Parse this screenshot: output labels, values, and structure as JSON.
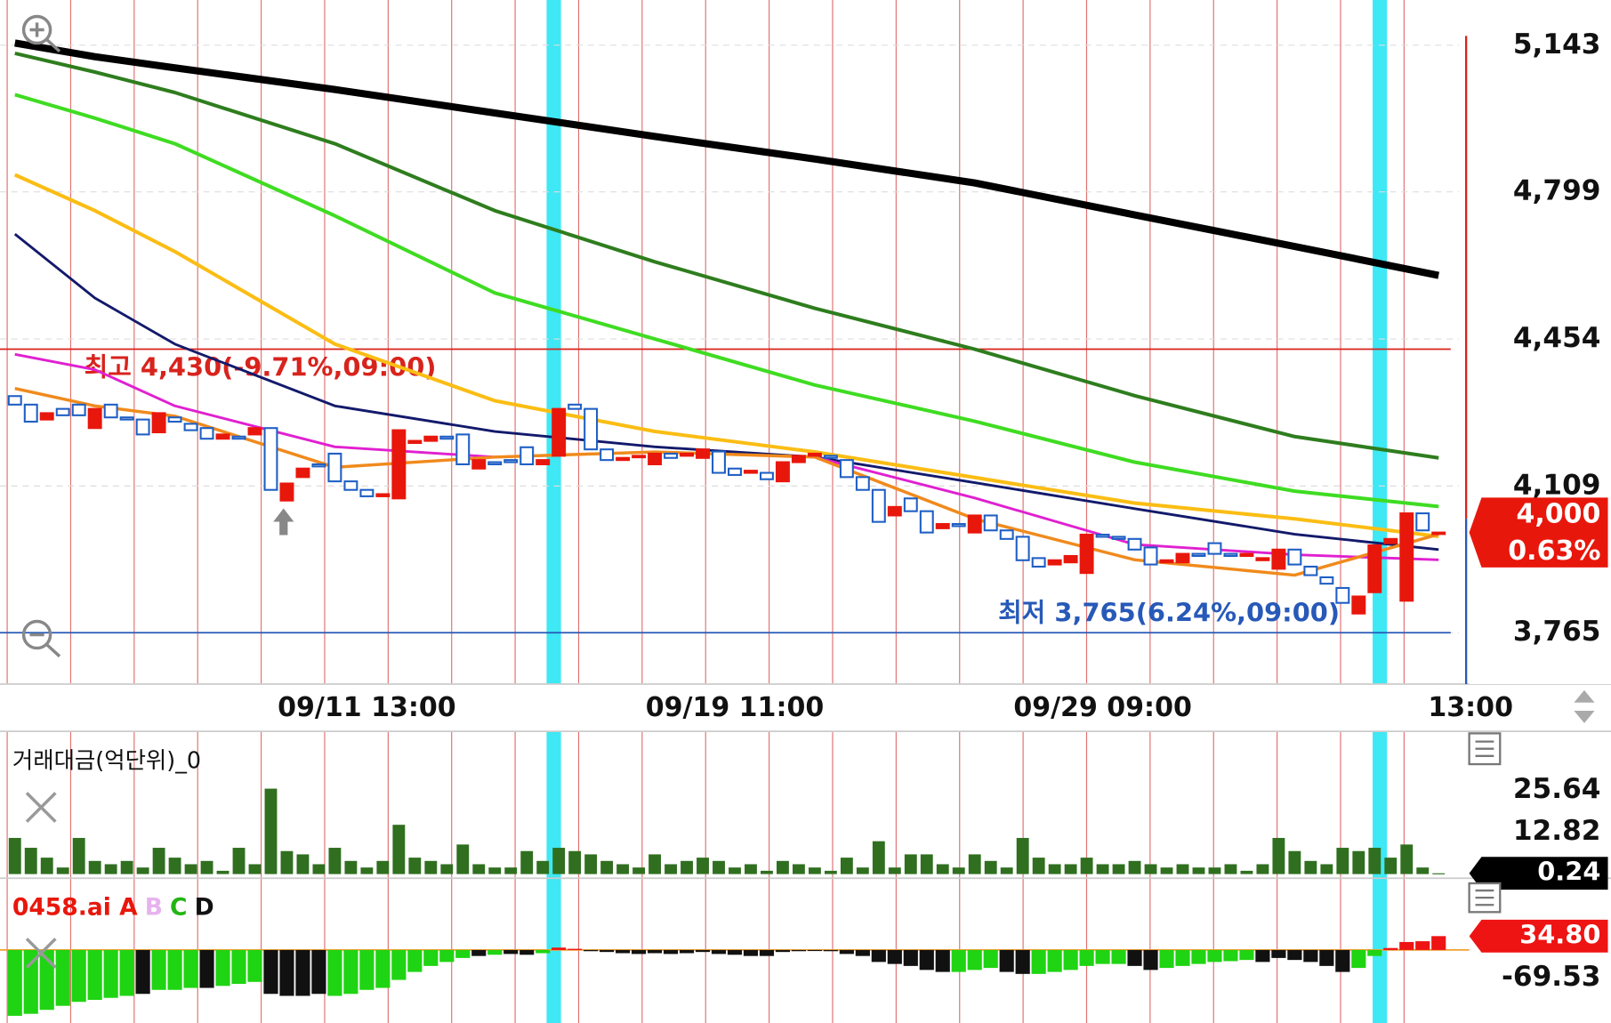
{
  "chart_data": [
    {
      "type": "candlestick",
      "categories": [
        null,
        null,
        null,
        null,
        null,
        null,
        null,
        null,
        null,
        null,
        null,
        null,
        null,
        null,
        null,
        null,
        null,
        null,
        null,
        null,
        null,
        null,
        "09/11 13:00",
        null,
        null,
        null,
        null,
        null,
        null,
        null,
        null,
        null,
        null,
        null,
        null,
        null,
        null,
        null,
        null,
        null,
        null,
        null,
        null,
        null,
        null,
        "09/19 11:00",
        null,
        null,
        null,
        null,
        null,
        null,
        null,
        null,
        null,
        null,
        null,
        null,
        null,
        null,
        null,
        null,
        null,
        null,
        null,
        null,
        null,
        null,
        "09/29 09:00",
        null,
        null,
        null,
        null,
        null,
        null,
        null,
        null,
        null,
        null,
        null,
        null,
        null,
        null,
        null,
        null,
        null,
        null,
        null,
        null,
        null,
        null,
        "13:00"
      ],
      "open": [
        4320,
        4300,
        4265,
        4290,
        4300,
        4245,
        4300,
        4270,
        4265,
        4235,
        4270,
        4255,
        4245,
        4220,
        4225,
        4230,
        4245,
        4075,
        4130,
        4160,
        4185,
        4120,
        4100,
        4085,
        4080,
        4210,
        4215,
        4225,
        4230,
        4150,
        4165,
        4170,
        4200,
        4160,
        4180,
        4300,
        4290,
        4195,
        4170,
        4180,
        4160,
        4185,
        4180,
        4175,
        4190,
        4150,
        4140,
        4140,
        4120,
        4165,
        4180,
        4180,
        4170,
        4130,
        4100,
        4040,
        4080,
        4050,
        4010,
        4020,
        4000,
        4040,
        4005,
        3990,
        3940,
        3925,
        3930,
        3905,
        3995,
        3990,
        3985,
        3965,
        3930,
        3930,
        3950,
        3975,
        3950,
        3945,
        3935,
        3915,
        3960,
        3920,
        3895,
        3870,
        3810,
        3860,
        3975,
        3840,
        4045,
        4000,
        null,
        null
      ],
      "high": {
        "value": 4430,
        "label": "최고 4,430(-9.71%,09:00)",
        "color": "#d8231c"
      },
      "low": {
        "value": 3765,
        "label": "최저 3,765(6.24%,09:00)",
        "color": "#2759b8"
      },
      "close": [
        4300,
        4260,
        4280,
        4275,
        4275,
        4290,
        4270,
        4265,
        4230,
        4280,
        4260,
        4240,
        4220,
        4230,
        4220,
        4245,
        4100,
        4115,
        4150,
        4155,
        4120,
        4100,
        4085,
        4090,
        4240,
        4215,
        4225,
        4220,
        4160,
        4170,
        4160,
        4165,
        4160,
        4170,
        4290,
        4290,
        4195,
        4170,
        4175,
        4180,
        4185,
        4175,
        4185,
        4195,
        4140,
        4135,
        4145,
        4125,
        4165,
        4180,
        4185,
        4175,
        4130,
        4100,
        4025,
        4060,
        4050,
        4000,
        4020,
        4015,
        4040,
        4005,
        3985,
        3935,
        3920,
        3935,
        3945,
        3995,
        3990,
        3985,
        3960,
        3925,
        3935,
        3950,
        3945,
        3950,
        3945,
        3950,
        3940,
        3960,
        3925,
        3900,
        3880,
        3835,
        3850,
        3970,
        3985,
        4045,
        4005,
        4000,
        null,
        null
      ],
      "up_color": "#e8170c",
      "down_color": "#1f5fc4",
      "ma_index": [
        0,
        5,
        10,
        20,
        30,
        40,
        50,
        60,
        70,
        80,
        89
      ],
      "lines": [
        {
          "color": "#000000",
          "width": 7,
          "values": [
            5148,
            5116,
            5090,
            5039,
            4984,
            4929,
            4876,
            4820,
            4745,
            4671,
            4603
          ]
        },
        {
          "color": "#2e7d1e",
          "width": 3.5,
          "values": [
            5124,
            5080,
            5032,
            4912,
            4755,
            4635,
            4526,
            4430,
            4321,
            4225,
            4175
          ]
        },
        {
          "color": "#3fdc22",
          "width": 3.5,
          "values": [
            5027,
            4972,
            4912,
            4743,
            4562,
            4454,
            4346,
            4261,
            4165,
            4097,
            4061
          ]
        },
        {
          "color": "#fbbd14",
          "width": 3.5,
          "values": [
            4839,
            4755,
            4659,
            4442,
            4309,
            4237,
            4189,
            4129,
            4069,
            4032,
            3991
          ]
        },
        {
          "color": "#131a6b",
          "width": 2.5,
          "values": [
            4700,
            4550,
            4442,
            4297,
            4237,
            4201,
            4177,
            4117,
            4056,
            3996,
            3960
          ]
        },
        {
          "color": "#e020d0",
          "width": 2.5,
          "values": [
            4418,
            4382,
            4297,
            4201,
            4177,
            4189,
            4177,
            4081,
            3972,
            3948,
            3936
          ]
        },
        {
          "color": "#f08a1c",
          "width": 3,
          "values": [
            4338,
            4297,
            4273,
            4153,
            4177,
            4189,
            4177,
            4032,
            3936,
            3900,
            3996
          ]
        }
      ],
      "ylim": [
        3647,
        5249
      ],
      "yticks": [
        {
          "value": 5143,
          "label": "5,143"
        },
        {
          "value": 4799,
          "label": "4,799"
        },
        {
          "value": 4454,
          "label": "4,454"
        },
        {
          "value": 4109,
          "label": "4,109"
        },
        {
          "value": 3765,
          "label": "3,765"
        }
      ],
      "grid": true,
      "last": {
        "value": 4000,
        "label": "4,000"
      },
      "change": "0.63%"
    },
    {
      "type": "bar",
      "title": "거래대금(억단위)_0",
      "color": "#2f6f1f",
      "values": [
        11,
        8,
        5,
        2,
        11,
        4,
        3,
        4,
        2,
        8,
        5,
        3,
        4,
        1,
        8,
        3,
        26,
        7,
        6,
        3,
        8,
        4,
        2,
        4,
        15,
        5,
        4,
        3,
        9,
        3,
        2,
        2,
        7,
        4,
        8,
        7,
        6,
        4,
        3,
        2,
        6,
        3,
        4,
        5,
        4,
        2,
        3,
        1,
        4,
        3,
        2,
        1,
        5,
        2,
        10,
        2,
        6,
        6,
        3,
        2,
        6,
        4,
        2,
        11,
        5,
        3,
        3,
        5,
        3,
        3,
        4,
        3,
        2,
        3,
        2,
        2,
        3,
        1,
        3,
        11,
        7,
        4,
        3,
        8,
        7,
        8,
        5,
        9,
        2,
        0.24,
        null,
        null
      ],
      "ylim": [
        0,
        43.46
      ],
      "yticks": [
        25.64,
        12.82
      ]
    },
    {
      "type": "bar",
      "title_parts": [
        {
          "text": "0458.ai A",
          "color": "#e8170c"
        },
        {
          "text": "B",
          "color": "#e6b3ee"
        },
        {
          "text": "C",
          "color": "#22b514"
        },
        {
          "text": "D",
          "color": "#111111"
        }
      ],
      "values": [
        -165,
        -160,
        -150,
        -140,
        -130,
        -125,
        -120,
        -115,
        -110,
        -100,
        -100,
        -95,
        -95,
        -90,
        -85,
        -80,
        -110,
        -115,
        -115,
        -110,
        -115,
        -110,
        -100,
        -95,
        -75,
        -55,
        -40,
        -30,
        -20,
        -15,
        -12,
        -10,
        -12,
        -8,
        6,
        3,
        -3,
        -5,
        -8,
        -10,
        -8,
        -10,
        -8,
        -5,
        -10,
        -12,
        -15,
        -15,
        -5,
        -3,
        -2,
        -3,
        -10,
        -15,
        -30,
        -35,
        -40,
        -50,
        -55,
        -55,
        -50,
        -45,
        -55,
        -60,
        -60,
        -55,
        -50,
        -40,
        -35,
        -35,
        -40,
        -50,
        -45,
        -40,
        -35,
        -30,
        -28,
        -25,
        -30,
        -20,
        -25,
        -30,
        -40,
        -55,
        -45,
        -15,
        5,
        20,
        22,
        34.8,
        null,
        null
      ],
      "bar_colors": "ggggggggkgggkgggkkkkgggggggggkgkkgrrkkkkkkkkkkkkkkkkkkkkkkkgggkkggggggkkggggggkkkkkkggrrrr",
      "palette": {
        "g": "#1fd412",
        "k": "#111111",
        "r": "#ee1414"
      },
      "ylim": [
        -183,
        180
      ],
      "yticks": [
        -69.53
      ],
      "current": {
        "value": 34.8,
        "label": "34.80"
      }
    }
  ]
}
